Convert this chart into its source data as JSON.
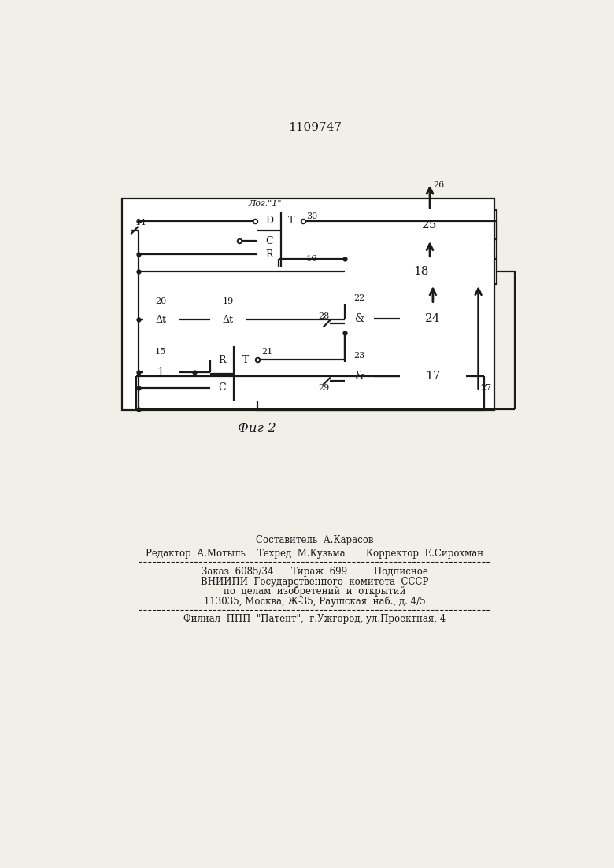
{
  "title": "1109747",
  "fig_label": "Фиг 2",
  "bg_color": "#f2efe8",
  "line_color": "#1a1a1a",
  "footer_lines": [
    "Составитель  А.Карасов",
    "Редактор  А.Мотыль    Техред  М.Кузьма       Корректор  Е.Сирохман",
    "Заказ  6085/34      Тираж  699         Подписное",
    "ВНИИПИ  Государственного  комитета  СССР",
    "по  делам  изобретений  и  открытий",
    "113035, Москва, Ж-35, Раушская  наб., д. 4/5",
    "Филиал  ППП  \"Патент\",  г.Ужгород, ул.Проектная, 4"
  ]
}
